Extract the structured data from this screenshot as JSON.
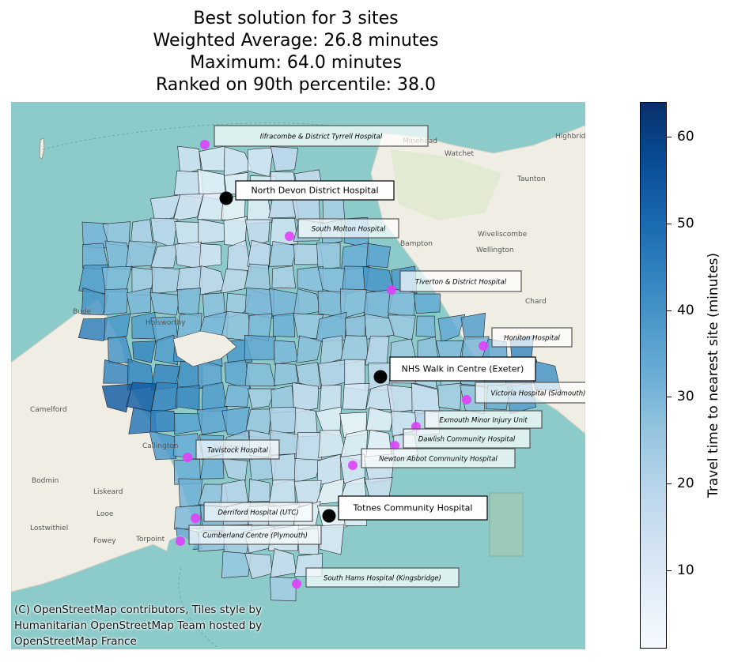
{
  "title_lines": [
    "Best solution for 3 sites",
    "Weighted Average: 26.8 minutes",
    "Maximum: 64.0 minutes",
    "Ranked on 90th percentile: 38.0"
  ],
  "selected_sites": [
    {
      "name": "North Devon District Hospital"
    },
    {
      "name": "NHS Walk in Centre (Exeter)"
    },
    {
      "name": "Totnes Community Hospital"
    }
  ],
  "candidate_sites": [
    {
      "name": "Ilfracombe & District Tyrrell Hospital"
    },
    {
      "name": "South Molton Hospital"
    },
    {
      "name": "Tiverton & District Hospital"
    },
    {
      "name": "Honiton Hospital"
    },
    {
      "name": "Victoria Hospital (Sidmouth)"
    },
    {
      "name": "Exmouth Minor Injury Unit"
    },
    {
      "name": "Dawlish Community Hospital"
    },
    {
      "name": "Newton Abbot Community Hospital"
    },
    {
      "name": "Tavistock Hospital"
    },
    {
      "name": "Derriford Hospital (UTC)"
    },
    {
      "name": "Cumberland Centre (Plymouth)"
    },
    {
      "name": "South Hams Hospital (Kingsbridge)"
    }
  ],
  "basemap_places": [
    "Minehead",
    "Watchet",
    "Highbridge",
    "Bude",
    "Camelford",
    "Bodmin",
    "Liskeard",
    "Looe",
    "Fowey",
    "Lostwithiel",
    "Torpoint",
    "Callington",
    "Wiveliscombe",
    "Wellington",
    "Chard",
    "Bampton",
    "Holsworthy",
    "Tavistock",
    "Taunton"
  ],
  "attribution_lines": [
    "(C) OpenStreetMap contributors, Tiles style by",
    "Humanitarian OpenStreetMap Team hosted by",
    "OpenStreetMap France"
  ],
  "colorbar": {
    "label": "Travel time to nearest site (minutes)",
    "min": 1,
    "max": 64,
    "ticks": [
      "10",
      "20",
      "30",
      "40",
      "50",
      "60"
    ],
    "colormap": "Blues",
    "colors": {
      "low": "#f7fbff",
      "mid": "#6baed6",
      "high": "#08306b"
    }
  },
  "colors": {
    "sea": "#8dcbcb",
    "land": "#f0eee4",
    "selected_marker": "#000000",
    "candidate_marker": "#e040fb"
  }
}
